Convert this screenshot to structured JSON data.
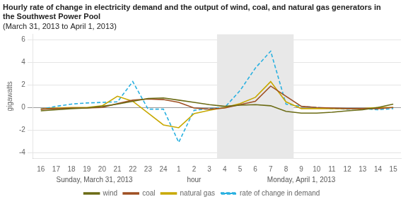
{
  "chart_data": {
    "type": "line",
    "title": "Hourly rate of change in electricity demand and the output of wind, coal, and natural gas generators in the Southwest Power Pool",
    "subtitle": "(March 31, 2013 to April 1, 2013)",
    "ylabel": "gigawatts",
    "categories": [
      "16",
      "17",
      "18",
      "19",
      "20",
      "21",
      "22",
      "23",
      "24",
      "1",
      "2",
      "3",
      "4",
      "5",
      "6",
      "7",
      "8",
      "9",
      "10",
      "11",
      "12",
      "13",
      "14",
      "15"
    ],
    "series": [
      {
        "name": "wind",
        "color": "#6b6b14",
        "line_style": "solid",
        "values": [
          -0.3,
          -0.2,
          -0.1,
          -0.05,
          0.1,
          0.3,
          0.55,
          0.8,
          0.85,
          0.65,
          0.45,
          0.25,
          0.1,
          0.2,
          0.25,
          0.15,
          -0.35,
          -0.5,
          -0.5,
          -0.42,
          -0.3,
          -0.2,
          0.0,
          0.3
        ]
      },
      {
        "name": "coal",
        "color": "#9e4f22",
        "line_style": "solid",
        "values": [
          -0.15,
          -0.1,
          -0.05,
          -0.05,
          0.0,
          0.35,
          0.65,
          0.75,
          0.7,
          0.45,
          -0.05,
          -0.15,
          -0.05,
          0.25,
          0.55,
          1.9,
          1.0,
          0.1,
          0.0,
          -0.05,
          -0.1,
          -0.1,
          -0.1,
          0.0
        ]
      },
      {
        "name": "natural gas",
        "color": "#c8a800",
        "line_style": "solid",
        "values": [
          -0.15,
          -0.05,
          0.0,
          0.0,
          0.15,
          1.0,
          0.55,
          -0.5,
          -1.55,
          -1.8,
          -0.55,
          -0.25,
          0.0,
          0.35,
          0.9,
          2.3,
          0.5,
          -0.1,
          -0.1,
          -0.1,
          -0.1,
          -0.1,
          0.0,
          0.0
        ]
      },
      {
        "name": "rate of change in demand",
        "color": "#29b0e0",
        "line_style": "dashed",
        "values": [
          -0.15,
          0.1,
          0.3,
          0.4,
          0.45,
          0.5,
          2.3,
          -0.15,
          -0.15,
          -3.1,
          -0.25,
          -0.1,
          0.0,
          1.5,
          3.5,
          5.0,
          0.3,
          0.1,
          0.0,
          -0.1,
          -0.15,
          -0.1,
          -0.2,
          -0.1
        ]
      }
    ],
    "ylim": [
      -4.5,
      6.5
    ],
    "yticks": [
      -4,
      -2,
      0,
      2,
      4,
      6
    ],
    "grid": "y",
    "legend": "bottom",
    "shade": {
      "from": "4",
      "to": "8",
      "color": "#e8e8e8"
    },
    "annotations": [
      {
        "text": "Sunday, March 31, 2013",
        "from": "16",
        "to": "23"
      },
      {
        "text": "hour",
        "from": "1",
        "to": "3"
      },
      {
        "text": "Monday, April 1, 2013",
        "from": "4",
        "to": "14"
      }
    ]
  }
}
